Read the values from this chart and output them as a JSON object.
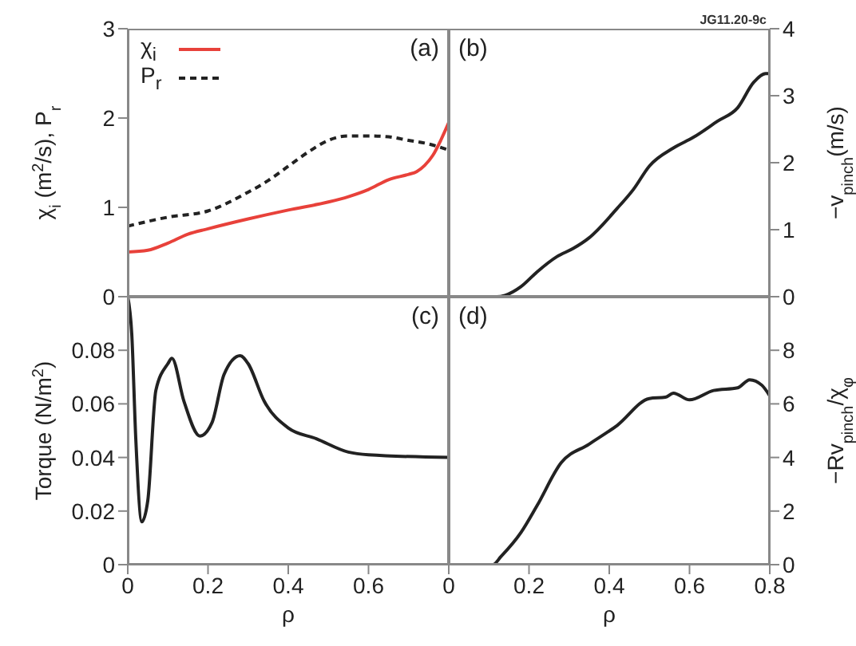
{
  "chart_data": [
    {
      "type": "line",
      "ylabel": "χ$_{i}$ (m$^{2}$/s), P$_{r}$",
      "xlim": [
        0,
        0.8
      ],
      "ylim": [
        0,
        3
      ],
      "yticks": [
        0,
        1,
        2,
        3
      ],
      "tick_labels": "y",
      "grid": false,
      "legend": "top left",
      "annotations": [
        "(a)"
      ],
      "series": [
        {
          "name": "χ$_{i}$",
          "color": "#e8413a",
          "line_style": "solid",
          "x": [
            0,
            0.05,
            0.1,
            0.15,
            0.2,
            0.3,
            0.4,
            0.5,
            0.55,
            0.6,
            0.65,
            0.7,
            0.72,
            0.74,
            0.76,
            0.78,
            0.8
          ],
          "values": [
            0.5,
            0.52,
            0.6,
            0.7,
            0.76,
            0.87,
            0.97,
            1.06,
            1.12,
            1.2,
            1.31,
            1.37,
            1.4,
            1.47,
            1.58,
            1.75,
            1.95
          ]
        },
        {
          "name": "P$_{r}$",
          "color": "#222222",
          "line_style": "dashed",
          "x": [
            0,
            0.1,
            0.2,
            0.3,
            0.35,
            0.4,
            0.45,
            0.5,
            0.55,
            0.6,
            0.65,
            0.7,
            0.75,
            0.8
          ],
          "values": [
            0.79,
            0.89,
            0.96,
            1.17,
            1.3,
            1.46,
            1.62,
            1.75,
            1.8,
            1.8,
            1.79,
            1.75,
            1.71,
            1.64
          ]
        }
      ]
    },
    {
      "type": "line",
      "y2label": "−v$_{pinch}$(m/s)",
      "xlim": [
        0,
        0.8
      ],
      "y2lim": [
        0,
        4
      ],
      "y2ticks": [
        0,
        1,
        2,
        3,
        4
      ],
      "tick_labels": "y",
      "grid": false,
      "annotations": [
        "(b)",
        "JG11.20-9c"
      ],
      "series": [
        {
          "color": "#222222",
          "axis": "y2",
          "line_style": "solid",
          "x": [
            0,
            0.06,
            0.12,
            0.14,
            0.18,
            0.22,
            0.27,
            0.31,
            0.35,
            0.42,
            0.46,
            0.5,
            0.56,
            0.61,
            0.67,
            0.72,
            0.76,
            0.79,
            0.8
          ],
          "values": [
            0,
            0,
            0,
            0.02,
            0.15,
            0.37,
            0.6,
            0.72,
            0.88,
            1.32,
            1.6,
            1.95,
            2.22,
            2.38,
            2.62,
            2.82,
            3.2,
            3.33,
            3.33
          ]
        }
      ]
    },
    {
      "type": "line",
      "xlabel": "ρ",
      "ylabel": "Torque (N/m$^{2}$)",
      "xlim": [
        0,
        0.8
      ],
      "xticks": [
        0,
        0.2,
        0.4,
        0.6
      ],
      "ylim": [
        0,
        0.1
      ],
      "yticks": [
        0,
        0.02,
        0.04,
        0.06,
        0.08
      ],
      "grid": false,
      "annotations": [
        "(c)"
      ],
      "series": [
        {
          "color": "#222222",
          "line_style": "solid",
          "x": [
            0,
            0.01,
            0.02,
            0.035,
            0.05,
            0.07,
            0.1,
            0.11,
            0.14,
            0.18,
            0.21,
            0.24,
            0.28,
            0.3,
            0.34,
            0.4,
            0.47,
            0.55,
            0.6,
            0.8
          ],
          "values": [
            0.1,
            0.086,
            0.047,
            0.016,
            0.024,
            0.065,
            0.075,
            0.077,
            0.061,
            0.048,
            0.053,
            0.071,
            0.078,
            0.075,
            0.061,
            0.051,
            0.047,
            0.042,
            0.041,
            0.04
          ]
        }
      ]
    },
    {
      "type": "line",
      "xlabel": "ρ",
      "y2label": "−Rv$_{pinch}$/χ$_{φ}$",
      "xlim": [
        0,
        0.8
      ],
      "xticks": [
        0,
        0.2,
        0.4,
        0.6,
        0.8
      ],
      "y2lim": [
        0,
        10
      ],
      "y2ticks": [
        0,
        2,
        4,
        6,
        8
      ],
      "grid": false,
      "annotations": [
        "(d)"
      ],
      "series": [
        {
          "color": "#222222",
          "axis": "y2",
          "line_style": "solid",
          "x": [
            0,
            0.06,
            0.11,
            0.13,
            0.18,
            0.22,
            0.28,
            0.35,
            0.42,
            0.5,
            0.54,
            0.56,
            0.6,
            0.66,
            0.72,
            0.75,
            0.78,
            0.8
          ],
          "values": [
            0,
            0,
            0,
            0.3,
            1.2,
            2.2,
            3.8,
            4.5,
            5.2,
            6.2,
            6.25,
            6.4,
            6.15,
            6.5,
            6.6,
            6.9,
            6.7,
            6.3
          ]
        }
      ]
    }
  ]
}
